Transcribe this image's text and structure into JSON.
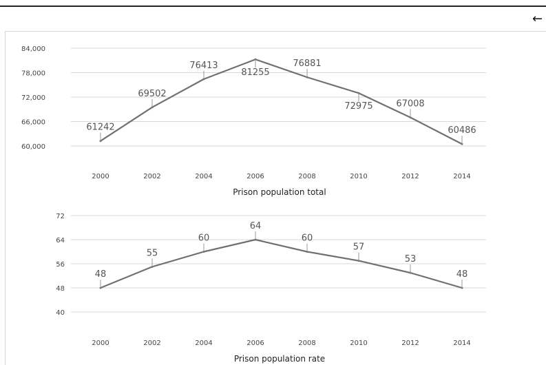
{
  "back_icon": "left-arrow-icon",
  "colors": {
    "line": "#707070",
    "grid": "#d9d9d9",
    "panel_border": "#d6d6d6"
  },
  "chart_data": [
    {
      "type": "line",
      "xlabel": "Prison population total",
      "ylabel": "",
      "x": [
        "2000",
        "2002",
        "2004",
        "2006",
        "2008",
        "2010",
        "2012",
        "2014"
      ],
      "values": [
        61242,
        69502,
        76413,
        81255,
        76881,
        72975,
        67008,
        60486
      ],
      "data_labels": [
        "61242",
        "69502",
        "76413",
        "81255",
        "76881",
        "72975",
        "67008",
        "60486"
      ],
      "y_ticks": [
        60000,
        66000,
        72000,
        78000,
        84000
      ],
      "y_tick_labels": [
        "60,000",
        "66,000",
        "72,000",
        "78,000",
        "84,000"
      ],
      "ylim": [
        60000,
        84000
      ],
      "grid": true
    },
    {
      "type": "line",
      "xlabel": "Prison population rate",
      "ylabel": "",
      "x": [
        "2000",
        "2002",
        "2004",
        "2006",
        "2008",
        "2010",
        "2012",
        "2014"
      ],
      "values": [
        48,
        55,
        60,
        64,
        60,
        57,
        53,
        48
      ],
      "data_labels": [
        "48",
        "55",
        "60",
        "64",
        "60",
        "57",
        "53",
        "48"
      ],
      "y_ticks": [
        40,
        48,
        56,
        64,
        72
      ],
      "y_tick_labels": [
        "40",
        "48",
        "56",
        "64",
        "72"
      ],
      "ylim": [
        40,
        72
      ],
      "grid": true
    }
  ]
}
